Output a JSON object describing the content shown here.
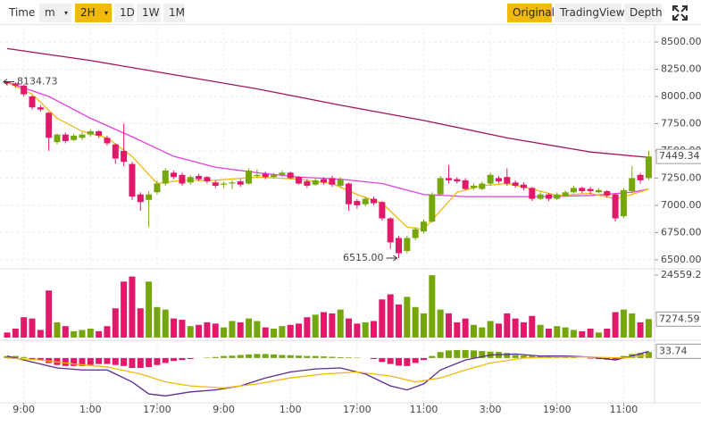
{
  "toolbar": {
    "left": [
      "Time",
      "m",
      "2H",
      "1D",
      "1W",
      "1M"
    ],
    "active_left": 2,
    "right": [
      "Original",
      "TradingView",
      "Depth"
    ],
    "active_right": 0
  },
  "chart_data": {
    "type": "candlestick",
    "categories": [
      null,
      null,
      "9:00",
      null,
      null,
      null,
      null,
      null,
      null,
      null,
      "1:00",
      null,
      null,
      null,
      null,
      null,
      null,
      null,
      "17:00",
      null,
      null,
      null,
      null,
      null,
      null,
      null,
      "9:00",
      null,
      null,
      null,
      null,
      null,
      null,
      null,
      "1:00",
      null,
      null,
      null,
      null,
      null,
      null,
      null,
      "17:00",
      null,
      null,
      null,
      null,
      null,
      null,
      null,
      "11:00",
      null,
      null,
      null,
      null,
      null,
      null,
      null,
      "3:00",
      null,
      null,
      null,
      null,
      null,
      null,
      null,
      "19:00",
      null,
      null,
      null,
      null,
      null,
      null,
      null,
      "11:00",
      null,
      null,
      null
    ],
    "open": [
      8140,
      8120,
      8100,
      8000,
      7900,
      7850,
      7580,
      7650,
      7600,
      7620,
      7650,
      7680,
      7620,
      7560,
      7500,
      7380,
      7100,
      7050,
      7120,
      7200,
      7300,
      7280,
      7210,
      7270,
      7260,
      7210,
      7190,
      7200,
      7220,
      7200,
      7270,
      7290,
      7260,
      7280,
      7300,
      7260,
      7220,
      7190,
      7240,
      7250,
      7180,
      7200,
      7040,
      7010,
      7060,
      7030,
      6880,
      6700,
      6580,
      6700,
      6760,
      6850,
      7100,
      7250,
      7240,
      7230,
      7160,
      7150,
      7200,
      7250,
      7260,
      7210,
      7190,
      7160,
      7060,
      7100,
      7060,
      7090,
      7120,
      7160,
      7150,
      7120,
      7130,
      7100,
      6900,
      7130,
      7280,
      7250
    ],
    "high": [
      8134.73,
      8130,
      8110,
      8010,
      7920,
      7860,
      7660,
      7670,
      7660,
      7670,
      7700,
      7690,
      7640,
      7570,
      7750,
      7400,
      7120,
      7130,
      7230,
      7340,
      7320,
      7300,
      7280,
      7290,
      7270,
      7230,
      7220,
      7230,
      7240,
      7340,
      7330,
      7310,
      7300,
      7320,
      7310,
      7270,
      7240,
      7250,
      7260,
      7270,
      7260,
      7210,
      7060,
      7080,
      7080,
      7040,
      6890,
      6720,
      6720,
      6800,
      6870,
      7120,
      7270,
      7370,
      7260,
      7250,
      7200,
      7220,
      7300,
      7270,
      7340,
      7230,
      7210,
      7170,
      7120,
      7110,
      7120,
      7140,
      7180,
      7170,
      7170,
      7160,
      7140,
      7110,
      7160,
      7360,
      7300,
      7500
    ],
    "low": [
      8100,
      8080,
      8000,
      7880,
      7860,
      7500,
      7560,
      7570,
      7590,
      7600,
      7630,
      7620,
      7550,
      7380,
      7360,
      7050,
      6950,
      6800,
      7100,
      7180,
      7240,
      7180,
      7190,
      7220,
      7200,
      7160,
      7160,
      7150,
      7170,
      7190,
      7250,
      7240,
      7250,
      7260,
      7240,
      7190,
      7160,
      7180,
      7190,
      7170,
      7160,
      6950,
      6970,
      6990,
      7000,
      6860,
      6600,
      6515,
      6560,
      6680,
      6740,
      6840,
      7090,
      7200,
      7200,
      7140,
      7140,
      7140,
      7180,
      7200,
      7180,
      7160,
      7140,
      7040,
      7050,
      7040,
      7050,
      7080,
      7110,
      7110,
      7100,
      7110,
      7070,
      6850,
      6880,
      7110,
      7200,
      7230
    ],
    "close": [
      8120,
      8100,
      8020,
      7900,
      7880,
      7620,
      7650,
      7590,
      7640,
      7650,
      7680,
      7640,
      7570,
      7430,
      7400,
      7080,
      7030,
      7100,
      7200,
      7320,
      7260,
      7200,
      7260,
      7240,
      7220,
      7180,
      7200,
      7210,
      7190,
      7320,
      7280,
      7260,
      7280,
      7300,
      7250,
      7200,
      7180,
      7230,
      7210,
      7190,
      7240,
      7010,
      7000,
      7060,
      7020,
      6880,
      6660,
      6560,
      6700,
      6780,
      6850,
      7100,
      7250,
      7230,
      7220,
      7150,
      7180,
      7200,
      7280,
      7220,
      7200,
      7180,
      7160,
      7060,
      7100,
      7060,
      7100,
      7120,
      7160,
      7130,
      7130,
      7140,
      7090,
      6880,
      7140,
      7250,
      7230,
      7449.34
    ],
    "up_color": "#76a70a",
    "down_color": "#e2186a",
    "ylim": [
      6425,
      8640
    ],
    "yticks": [
      {
        "value": 8500,
        "label": "8500.00"
      },
      {
        "value": 8250,
        "label": "8250.00"
      },
      {
        "value": 8000,
        "label": "8000.00"
      },
      {
        "value": 7750,
        "label": "7750.00"
      },
      {
        "value": 7500,
        "label": "7500.00"
      },
      {
        "value": 7250,
        "label": "7250.00"
      },
      {
        "value": 7000,
        "label": "7000.00"
      },
      {
        "value": 6750,
        "label": "6750.00"
      },
      {
        "value": 6500,
        "label": "6500.00"
      }
    ],
    "grid": true,
    "lines": [
      {
        "color": "#a3155a",
        "x": [
          0,
          10,
          20,
          30,
          40,
          50,
          60,
          70,
          77
        ],
        "values": [
          8440,
          8330,
          8200,
          8070,
          7920,
          7780,
          7620,
          7490,
          7440
        ]
      },
      {
        "color": "#e63ee0",
        "x": [
          0,
          5,
          10,
          15,
          20,
          25,
          30,
          35,
          40,
          45,
          50,
          55,
          60,
          65,
          70,
          75,
          77
        ],
        "values": [
          8130,
          8000,
          7800,
          7630,
          7450,
          7350,
          7300,
          7260,
          7240,
          7200,
          7100,
          7080,
          7080,
          7080,
          7090,
          7120,
          7150
        ]
      },
      {
        "color": "#f0b90b",
        "x": [
          0,
          3,
          6,
          9,
          12,
          15,
          18,
          21,
          25,
          30,
          35,
          39,
          42,
          45,
          48,
          50,
          52,
          54,
          57,
          60,
          63,
          66,
          70,
          73,
          75,
          77
        ],
        "values": [
          8130,
          8020,
          7800,
          7680,
          7620,
          7450,
          7200,
          7230,
          7230,
          7260,
          7240,
          7200,
          7100,
          7020,
          6800,
          6780,
          6950,
          7120,
          7180,
          7200,
          7150,
          7090,
          7110,
          7060,
          7100,
          7150
        ]
      }
    ],
    "annotations": [
      {
        "index": 0,
        "label": "8134.73"
      },
      {
        "index": 47,
        "label": "6515.00"
      }
    ],
    "volume": {
      "values": [
        2000,
        3500,
        8000,
        7500,
        3000,
        18500,
        6000,
        4500,
        2500,
        3000,
        3500,
        2500,
        4500,
        11500,
        22000,
        24000,
        11500,
        22000,
        12000,
        11000,
        7500,
        7000,
        4500,
        5000,
        6000,
        5500,
        4000,
        6500,
        6000,
        7500,
        6500,
        4000,
        3500,
        4500,
        5000,
        5500,
        8000,
        9000,
        10000,
        9500,
        11000,
        7500,
        5500,
        6000,
        6500,
        15000,
        17000,
        13000,
        16000,
        12000,
        9500,
        24500,
        11000,
        9500,
        6000,
        7500,
        5000,
        4000,
        6500,
        5500,
        9500,
        7500,
        6000,
        8500,
        5000,
        3500,
        4500,
        4000,
        3000,
        2500,
        3500,
        2000,
        3500,
        10000,
        11000,
        9500,
        6000,
        7274.59
      ],
      "ylim": [
        0,
        24559.26
      ],
      "yticks": [
        24559.26
      ]
    },
    "macd": {
      "histogram": [
        10,
        10,
        5,
        -5,
        -10,
        -25,
        -35,
        -40,
        -40,
        -40,
        -35,
        -30,
        -30,
        -35,
        -40,
        -50,
        -50,
        -45,
        -35,
        -25,
        -15,
        -10,
        -5,
        0,
        2,
        5,
        10,
        12,
        15,
        18,
        20,
        20,
        18,
        15,
        14,
        12,
        10,
        10,
        8,
        6,
        4,
        3,
        2,
        0,
        -5,
        -20,
        -30,
        -38,
        -40,
        -25,
        -10,
        10,
        30,
        38,
        40,
        40,
        38,
        35,
        32,
        30,
        25,
        15,
        12,
        10,
        12,
        10,
        12,
        10,
        5,
        0,
        -3,
        -5,
        -8,
        -10,
        10,
        20,
        25,
        30
      ],
      "lines": [
        {
          "color": "#5b2c91",
          "x": [
            0,
            3,
            6,
            9,
            12,
            15,
            17,
            19,
            22,
            25,
            28,
            31,
            34,
            37,
            40,
            43,
            46,
            48,
            50,
            52,
            55,
            58,
            61,
            64,
            67,
            70,
            73,
            75,
            77
          ],
          "values": [
            10,
            -20,
            -50,
            -60,
            -60,
            -120,
            -180,
            -190,
            -170,
            -160,
            -140,
            -100,
            -70,
            -55,
            -50,
            -80,
            -140,
            -160,
            -130,
            -60,
            -10,
            15,
            20,
            10,
            10,
            5,
            -10,
            10,
            33.74
          ]
        },
        {
          "color": "#f0b90b",
          "x": [
            0,
            4,
            8,
            12,
            16,
            19,
            22,
            26,
            30,
            34,
            38,
            42,
            46,
            49,
            52,
            55,
            58,
            62,
            66,
            70,
            74,
            77
          ],
          "values": [
            0,
            -10,
            -30,
            -45,
            -80,
            -120,
            -140,
            -150,
            -130,
            -100,
            -80,
            -70,
            -90,
            -120,
            -100,
            -60,
            -25,
            0,
            5,
            5,
            0,
            15
          ]
        }
      ],
      "ylim": [
        -220,
        80
      ]
    }
  }
}
